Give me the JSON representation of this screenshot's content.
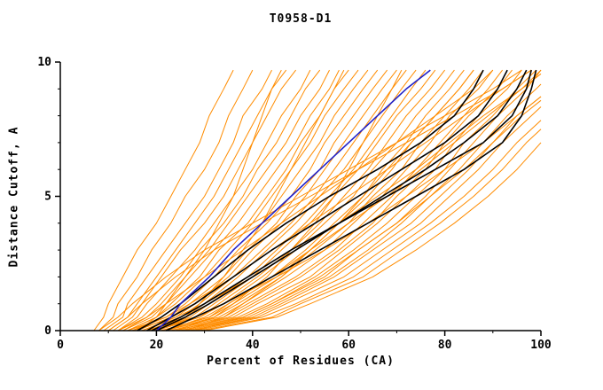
{
  "title": "T0958-D1",
  "chart_data": {
    "type": "line",
    "title": "T0958-D1",
    "xlabel": "Percent of Residues (CA)",
    "ylabel": "Distance Cutoff, A",
    "xlim": [
      0,
      100
    ],
    "ylim": [
      0,
      10
    ],
    "x_ticks": [
      0,
      20,
      40,
      60,
      80,
      100
    ],
    "x_minor_ticks": [
      10,
      30,
      50,
      70,
      90
    ],
    "y_ticks": [
      0,
      5,
      10
    ],
    "y_minor_ticks": [
      1,
      2,
      3,
      4,
      6,
      7,
      8,
      9
    ],
    "grid": false,
    "legend": "none",
    "colors": {
      "ensemble": "#ff8c00",
      "highlight": "#000000",
      "reference": "#2121c8"
    },
    "y_grid": [
      0,
      0.5,
      1,
      2,
      3,
      4,
      5,
      6,
      7,
      8,
      9,
      9.7
    ],
    "series_groups": [
      {
        "name": "orange-models",
        "color": "#ff8c00",
        "width": 1,
        "curves_x": [
          [
            7,
            9,
            10,
            13,
            16,
            20,
            23,
            26,
            29,
            31,
            34,
            36
          ],
          [
            8,
            11,
            12,
            16,
            19,
            23,
            26,
            30,
            33,
            35,
            38,
            40
          ],
          [
            9,
            13,
            14,
            18,
            22,
            26,
            30,
            33,
            36,
            38,
            42,
            44
          ],
          [
            10,
            14,
            16,
            20,
            24,
            28,
            32,
            35,
            38,
            41,
            44,
            47
          ],
          [
            11,
            15,
            17,
            21,
            25,
            30,
            34,
            37,
            40,
            43,
            46,
            49
          ],
          [
            12,
            16,
            18,
            23,
            28,
            32,
            36,
            40,
            43,
            46,
            50,
            52
          ],
          [
            12,
            17,
            20,
            25,
            29,
            34,
            38,
            41,
            45,
            48,
            51,
            54
          ],
          [
            13,
            18,
            21,
            26,
            31,
            35,
            39,
            43,
            47,
            50,
            54,
            56
          ],
          [
            13,
            19,
            22,
            27,
            32,
            37,
            41,
            45,
            49,
            52,
            56,
            58
          ],
          [
            14,
            20,
            23,
            29,
            33,
            39,
            43,
            47,
            50,
            54,
            57,
            60
          ],
          [
            14,
            20,
            24,
            30,
            35,
            40,
            44,
            48,
            52,
            55,
            59,
            62
          ],
          [
            15,
            21,
            25,
            31,
            36,
            42,
            46,
            50,
            54,
            57,
            61,
            64
          ],
          [
            15,
            22,
            26,
            32,
            37,
            43,
            48,
            52,
            55,
            59,
            63,
            66
          ],
          [
            16,
            23,
            27,
            34,
            39,
            45,
            49,
            54,
            57,
            61,
            65,
            68
          ],
          [
            17,
            24,
            28,
            35,
            40,
            46,
            51,
            55,
            59,
            63,
            67,
            70
          ],
          [
            17,
            25,
            29,
            36,
            42,
            48,
            53,
            57,
            61,
            65,
            69,
            72
          ],
          [
            18,
            26,
            30,
            37,
            43,
            49,
            54,
            59,
            63,
            67,
            71,
            74
          ],
          [
            18,
            27,
            31,
            39,
            45,
            51,
            56,
            61,
            65,
            69,
            73,
            76
          ],
          [
            19,
            28,
            32,
            40,
            46,
            52,
            57,
            62,
            66,
            70,
            75,
            78
          ],
          [
            19,
            29,
            33,
            41,
            48,
            54,
            59,
            64,
            68,
            72,
            77,
            80
          ],
          [
            20,
            29,
            34,
            42,
            49,
            55,
            61,
            65,
            70,
            74,
            79,
            82
          ],
          [
            21,
            31,
            35,
            44,
            51,
            57,
            63,
            67,
            72,
            76,
            81,
            84
          ],
          [
            21,
            31,
            36,
            45,
            52,
            58,
            64,
            69,
            73,
            78,
            83,
            86
          ],
          [
            22,
            32,
            37,
            46,
            53,
            60,
            65,
            71,
            75,
            80,
            85,
            88
          ],
          [
            22,
            33,
            38,
            47,
            55,
            61,
            67,
            72,
            77,
            81,
            87,
            90
          ],
          [
            23,
            34,
            39,
            49,
            57,
            63,
            69,
            74,
            79,
            84,
            89,
            92
          ],
          [
            24,
            35,
            40,
            50,
            58,
            65,
            70,
            76,
            80,
            85,
            91,
            94
          ],
          [
            24,
            36,
            41,
            52,
            59,
            66,
            72,
            78,
            82,
            87,
            93,
            96
          ],
          [
            25,
            37,
            43,
            53,
            61,
            68,
            74,
            80,
            84,
            90,
            95,
            99
          ],
          [
            25,
            38,
            44,
            55,
            62,
            70,
            76,
            81,
            86,
            91,
            97,
            100
          ],
          [
            26,
            39,
            45,
            56,
            64,
            71,
            77,
            83,
            88,
            93,
            99,
            103
          ],
          [
            27,
            40,
            46,
            57,
            65,
            73,
            79,
            85,
            90,
            95,
            102,
            106
          ],
          [
            27,
            41,
            47,
            59,
            67,
            75,
            81,
            87,
            92,
            98,
            104,
            108
          ],
          [
            28,
            42,
            49,
            61,
            69,
            77,
            84,
            90,
            95,
            101,
            107,
            111
          ],
          [
            29,
            44,
            50,
            63,
            71,
            79,
            86,
            92,
            97,
            103,
            110,
            114
          ],
          [
            30,
            45,
            52,
            65,
            74,
            82,
            89,
            95,
            100,
            106,
            112,
            116
          ],
          [
            16,
            20,
            22,
            26,
            30,
            33,
            36,
            38,
            40,
            42,
            44,
            46
          ],
          [
            20,
            26,
            29,
            34,
            38,
            42,
            45,
            48,
            51,
            54,
            57,
            59
          ],
          [
            24,
            32,
            36,
            43,
            48,
            53,
            57,
            60,
            63,
            66,
            69,
            71
          ],
          [
            14,
            22,
            27,
            36,
            44,
            52,
            60,
            68,
            76,
            84,
            92,
            98
          ],
          [
            18,
            28,
            34,
            45,
            55,
            64,
            72,
            80,
            88,
            95,
            102,
            107
          ],
          [
            22,
            30,
            35,
            44,
            52,
            60,
            68,
            75,
            82,
            89,
            96,
            101
          ],
          [
            10,
            14,
            17,
            24,
            32,
            42,
            52,
            62,
            72,
            82,
            92,
            98
          ],
          [
            26,
            34,
            38,
            46,
            52,
            58,
            63,
            68,
            73,
            78,
            83,
            86
          ],
          [
            12,
            18,
            22,
            30,
            38,
            46,
            54,
            62,
            70,
            78,
            86,
            90
          ],
          [
            28,
            38,
            44,
            54,
            62,
            70,
            77,
            84,
            90,
            96,
            103,
            107
          ],
          [
            15,
            24,
            30,
            40,
            49,
            58,
            66,
            74,
            81,
            88,
            96,
            100
          ],
          [
            8,
            12,
            15,
            22,
            30,
            40,
            50,
            60,
            70,
            80,
            90,
            96
          ]
        ]
      },
      {
        "name": "black-models",
        "color": "#000000",
        "width": 1.6,
        "curves_x": [
          [
            16,
            21,
            25,
            32,
            39,
            47,
            56,
            66,
            75,
            82,
            86,
            88
          ],
          [
            18,
            23,
            28,
            36,
            44,
            53,
            62,
            71,
            80,
            87,
            91,
            93
          ],
          [
            20,
            26,
            31,
            40,
            49,
            58,
            67,
            76,
            84,
            91,
            95,
            97
          ],
          [
            19,
            25,
            30,
            39,
            48,
            58,
            68,
            78,
            88,
            94,
            97,
            98
          ],
          [
            22,
            28,
            34,
            44,
            54,
            64,
            74,
            84,
            92,
            96,
            98,
            99
          ]
        ]
      },
      {
        "name": "blue-model",
        "color": "#2121c8",
        "width": 1.6,
        "curves_x": [
          [
            20,
            23,
            25,
            31,
            36,
            42,
            48,
            54,
            60,
            66,
            72,
            77
          ]
        ]
      }
    ]
  }
}
